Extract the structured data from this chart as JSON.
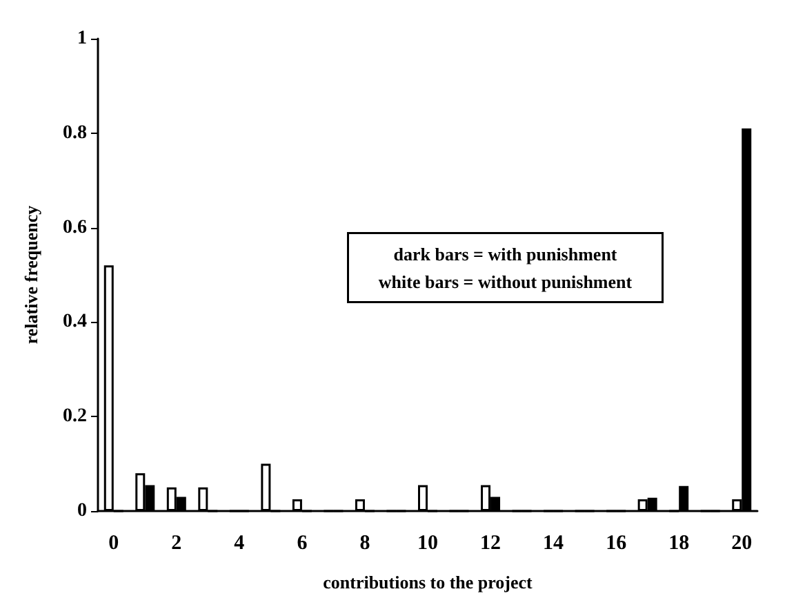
{
  "chart_data": {
    "type": "bar",
    "xlabel": "contributions to the project",
    "ylabel": "relative frequency",
    "categories": [
      "0",
      null,
      "2",
      null,
      "4",
      null,
      "6",
      null,
      "8",
      null,
      "10",
      null,
      "12",
      null,
      "14",
      null,
      "16",
      null,
      "18",
      null,
      "20"
    ],
    "series": [
      {
        "color": "#ffffff",
        "values": [
          0.52,
          0.08,
          0.05,
          0.05,
          0,
          0.1,
          0.025,
          0,
          0.025,
          0,
          0.055,
          0,
          0.055,
          0,
          0,
          0,
          0,
          0.025,
          0,
          0,
          0.025
        ]
      },
      {
        "color": "#000000",
        "values": [
          0,
          0.055,
          0.03,
          0,
          0,
          0,
          0,
          0,
          0,
          0,
          0,
          0,
          0.03,
          0,
          0,
          0,
          0,
          0.028,
          0.053,
          0,
          0.81
        ]
      }
    ],
    "ylim": [
      0,
      1
    ],
    "yticks": [
      0,
      0.2,
      0.4,
      0.6,
      0.8,
      1
    ],
    "grid": false,
    "annotations": [
      "dark bars = with punishment",
      "white bars = without punishment"
    ]
  }
}
